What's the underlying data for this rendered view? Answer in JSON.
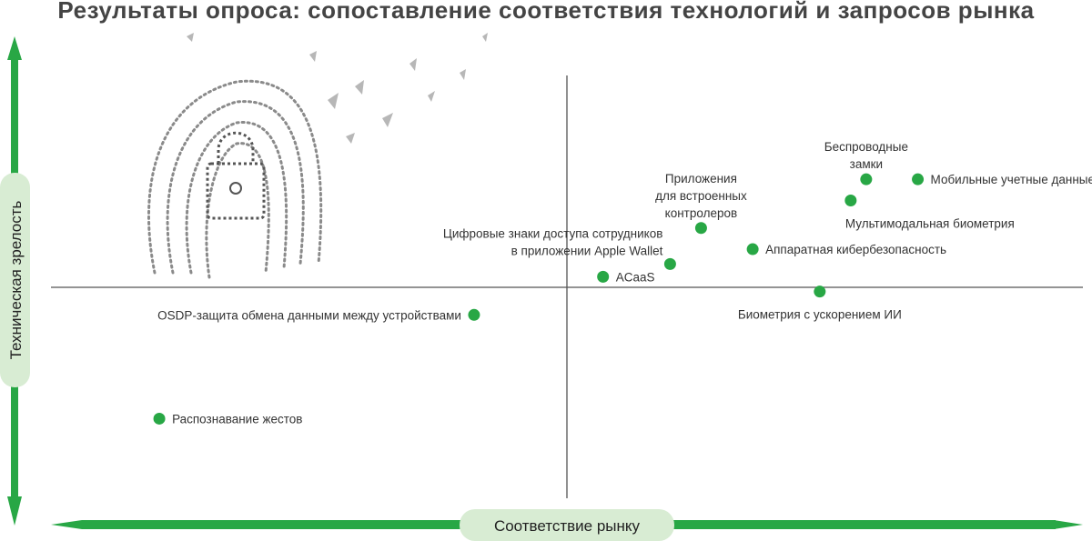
{
  "page": {
    "title": "Результаты опроса: сопоставление соответствия технологий и запросов рынка"
  },
  "colors": {
    "accent": "#28a745",
    "pill": "#d8ecd3",
    "divider": "#555555",
    "text": "#333333"
  },
  "decoration": {
    "icon": "fingerprint-padlock-icon"
  },
  "chart_data": {
    "type": "scatter",
    "title": "Результаты опроса: сопоставление соответствия технологий и запросов рынка",
    "xlabel": "Соответствие рынку",
    "ylabel": "Техническая зрелость",
    "xlim": [
      -1,
      1
    ],
    "ylim": [
      -1,
      1
    ],
    "grid": false,
    "points": [
      {
        "label": "Беспроводные замки",
        "lines": [
          "Беспроводные",
          "замки"
        ],
        "x": 0.58,
        "y": 0.51,
        "label_pos": "above"
      },
      {
        "label": "Мобильные учетные данные",
        "lines": [
          "Мобильные учетные данные"
        ],
        "x": 0.68,
        "y": 0.51,
        "label_pos": "right"
      },
      {
        "label": "Мультимодальная биометрия",
        "lines": [
          "Мультимодальная биометрия"
        ],
        "x": 0.55,
        "y": 0.41,
        "label_pos": "below-right"
      },
      {
        "label": "Приложения для встроенных контролеров",
        "lines": [
          "Приложения",
          "для встроенных",
          "контролеров"
        ],
        "x": 0.26,
        "y": 0.28,
        "label_pos": "above"
      },
      {
        "label": "Аппаратная кибербезопасность",
        "lines": [
          "Аппаратная кибербезопасность"
        ],
        "x": 0.36,
        "y": 0.18,
        "label_pos": "right"
      },
      {
        "label": "Цифровые знаки доступа сотрудников в приложении Apple Wallet",
        "lines": [
          "Цифровые знаки доступа сотрудников",
          "в приложении Apple Wallet"
        ],
        "x": 0.2,
        "y": 0.11,
        "label_pos": "above-left"
      },
      {
        "label": "ACaaS",
        "lines": [
          "ACaaS"
        ],
        "x": 0.07,
        "y": 0.05,
        "label_pos": "right"
      },
      {
        "label": "Биометрия с ускорением ИИ",
        "lines": [
          "Биометрия с ускорением ИИ"
        ],
        "x": 0.49,
        "y": -0.02,
        "label_pos": "below"
      },
      {
        "label": "OSDP-защита обмена данными между устройствами",
        "lines": [
          "OSDP-защита обмена данными между устройствами"
        ],
        "x": -0.18,
        "y": -0.13,
        "label_pos": "left"
      },
      {
        "label": "Распознавание жестов",
        "lines": [
          "Распознавание жестов"
        ],
        "x": -0.79,
        "y": -0.62,
        "label_pos": "right"
      }
    ]
  }
}
